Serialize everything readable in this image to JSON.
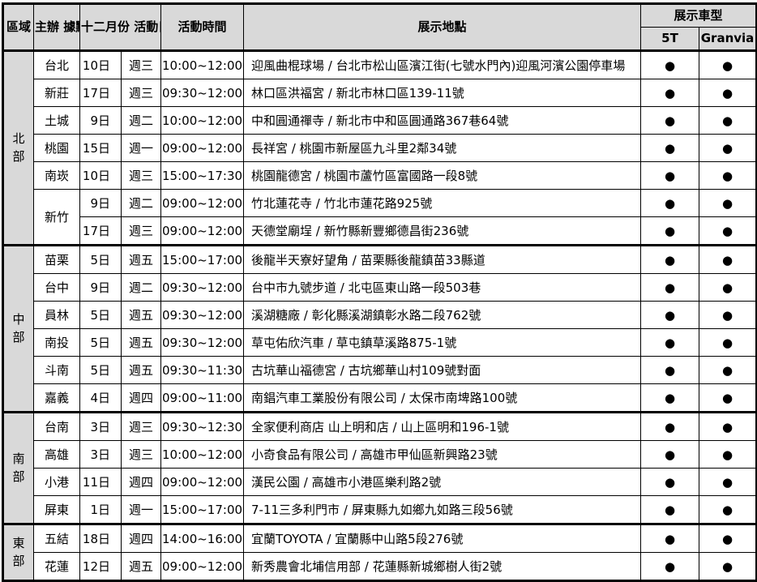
{
  "colors": {
    "header_bg": "#d9d9d9",
    "border": "#000000",
    "text": "#000000"
  },
  "table": {
    "headers": {
      "region": "區域",
      "host": "主辦\n據點",
      "date_group": "十二月份\n活動日期",
      "time": "活動時間",
      "location": "展示地點",
      "model_group": "展示車型",
      "model_5t": "5T",
      "model_granvia": "Granvia"
    },
    "bullet": "●",
    "regions": [
      {
        "name": "北部",
        "rows": [
          {
            "host": "台北",
            "date": "10日",
            "weekday": "週三",
            "time": "10:00~12:00",
            "location": "迎風曲棍球場 / 台北市松山區濱江街(七號水門內)迎風河濱公園停車場",
            "t5": true,
            "granvia": true
          },
          {
            "host": "新莊",
            "date": "17日",
            "weekday": "週三",
            "time": "09:30~12:00",
            "location": "林口區洪福宮 / 新北市林口區139-11號",
            "t5": true,
            "granvia": true
          },
          {
            "host": "土城",
            "date": "9日",
            "weekday": "週二",
            "time": "10:00~12:00",
            "location": "中和圓通禪寺 / 新北市中和區圓通路367巷64號",
            "t5": true,
            "granvia": true
          },
          {
            "host": "桃園",
            "date": "15日",
            "weekday": "週一",
            "time": "09:00~12:00",
            "location": "長祥宮 / 桃園市新屋區九斗里2鄰34號",
            "t5": true,
            "granvia": true
          },
          {
            "host": "南崁",
            "date": "10日",
            "weekday": "週三",
            "time": "15:00~17:30",
            "location": "桃園龍德宮 / 桃園市蘆竹區富國路一段8號",
            "t5": true,
            "granvia": true
          },
          {
            "host": "新竹",
            "host_rowspan": 2,
            "date": "9日",
            "weekday": "週二",
            "time": "09:00~12:00",
            "location": "竹北蓮花寺 / 竹北市蓮花路925號",
            "t5": true,
            "granvia": true
          },
          {
            "host": null,
            "date": "17日",
            "weekday": "週三",
            "time": "09:00~12:00",
            "location": "天德堂廟埕 / 新竹縣新豐鄉德昌街236號",
            "t5": true,
            "granvia": true
          }
        ]
      },
      {
        "name": "中部",
        "rows": [
          {
            "host": "苗栗",
            "date": "5日",
            "weekday": "週五",
            "time": "15:00~17:00",
            "location": "後龍半天寮好望角 / 苗栗縣後龍鎮苗33縣道",
            "t5": true,
            "granvia": true
          },
          {
            "host": "台中",
            "date": "9日",
            "weekday": "週二",
            "time": "09:30~12:00",
            "location": "台中市九號步道 / 北屯區東山路一段503巷",
            "t5": true,
            "granvia": true
          },
          {
            "host": "員林",
            "date": "5日",
            "weekday": "週五",
            "time": "09:30~12:00",
            "location": "溪湖糖廠 / 彰化縣溪湖鎮彰水路二段762號",
            "t5": true,
            "granvia": true
          },
          {
            "host": "南投",
            "date": "5日",
            "weekday": "週五",
            "time": "09:30~12:00",
            "location": "草屯佑欣汽車 / 草屯鎮草溪路875-1號",
            "t5": true,
            "granvia": true
          },
          {
            "host": "斗南",
            "date": "5日",
            "weekday": "週五",
            "time": "09:30~11:30",
            "location": "古坑華山福德宮 / 古坑鄉華山村109號對面",
            "t5": true,
            "granvia": true
          },
          {
            "host": "嘉義",
            "date": "4日",
            "weekday": "週四",
            "time": "09:00~11:00",
            "location": "南錩汽車工業股份有限公司 / 太保市南埤路100號",
            "t5": true,
            "granvia": true
          }
        ]
      },
      {
        "name": "南部",
        "rows": [
          {
            "host": "台南",
            "date": "3日",
            "weekday": "週三",
            "time": "09:30~12:30",
            "location": "全家便利商店 山上明和店 / 山上區明和196-1號",
            "t5": true,
            "granvia": true
          },
          {
            "host": "高雄",
            "date": "3日",
            "weekday": "週三",
            "time": "10:00~12:00",
            "location": "小奇食品有限公司 / 高雄市甲仙區新興路23號",
            "t5": true,
            "granvia": true
          },
          {
            "host": "小港",
            "date": "11日",
            "weekday": "週四",
            "time": "09:00~12:00",
            "location": "漢民公園 / 高雄市小港區樂利路2號",
            "t5": true,
            "granvia": true
          },
          {
            "host": "屏東",
            "date": "1日",
            "weekday": "週一",
            "time": "15:00~17:00",
            "location": "7-11三多利門市 / 屏東縣九如鄉九如路三段56號",
            "t5": true,
            "granvia": true
          }
        ]
      },
      {
        "name": "東部",
        "rows": [
          {
            "host": "五結",
            "date": "18日",
            "weekday": "週四",
            "time": "14:00~16:00",
            "location": "宜蘭TOYOTA / 宜蘭縣中山路5段276號",
            "t5": true,
            "granvia": true
          },
          {
            "host": "花蓮",
            "date": "12日",
            "weekday": "週五",
            "time": "09:00~12:00",
            "location": "新秀農會北埔信用部 / 花蓮縣新城鄉樹人街2號",
            "t5": true,
            "granvia": true
          }
        ]
      }
    ]
  }
}
